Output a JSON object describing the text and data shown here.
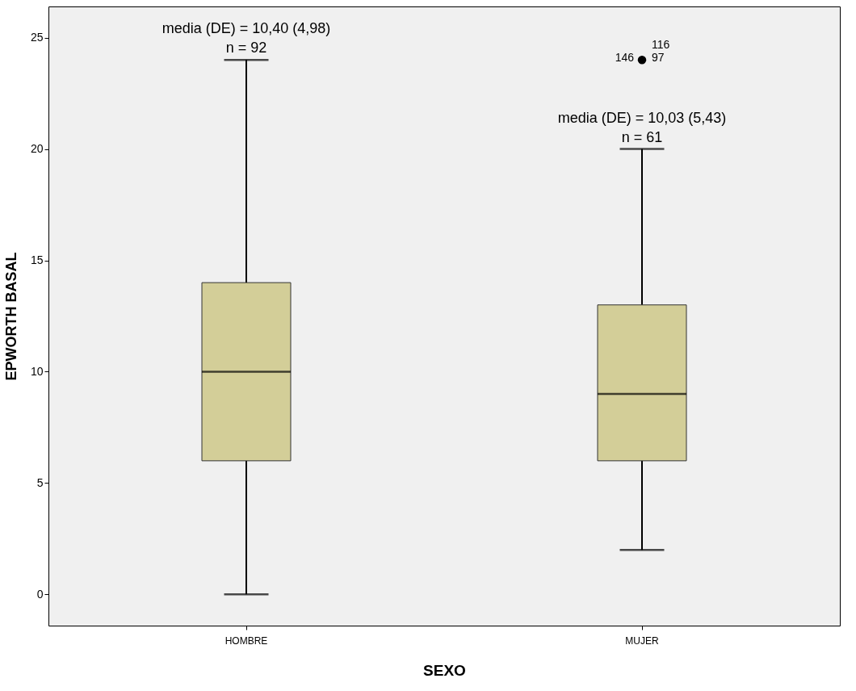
{
  "chart_data": {
    "type": "box",
    "xlabel": "SEXO",
    "ylabel": "EPWORTH BASAL",
    "categories": [
      "HOMBRE",
      "MUJER"
    ],
    "boxes": [
      {
        "low": 0,
        "q1": 6,
        "median": 10,
        "q3": 14,
        "high": 24
      },
      {
        "low": 2,
        "q1": 6,
        "median": 9,
        "q3": 13,
        "high": 20,
        "outliers": [
          24
        ]
      }
    ],
    "color": "#d3ce98",
    "ylim": [
      -1.4,
      26.4
    ],
    "yticks": [
      0,
      5,
      10,
      15,
      20,
      25
    ],
    "grid": false,
    "marker": "circle",
    "annotations": [
      "media (DE) = 10,40 (4,98)",
      "n = 92",
      "media (DE) = 10,03 (5,43)",
      "n = 61",
      "146",
      "116",
      "97"
    ]
  }
}
